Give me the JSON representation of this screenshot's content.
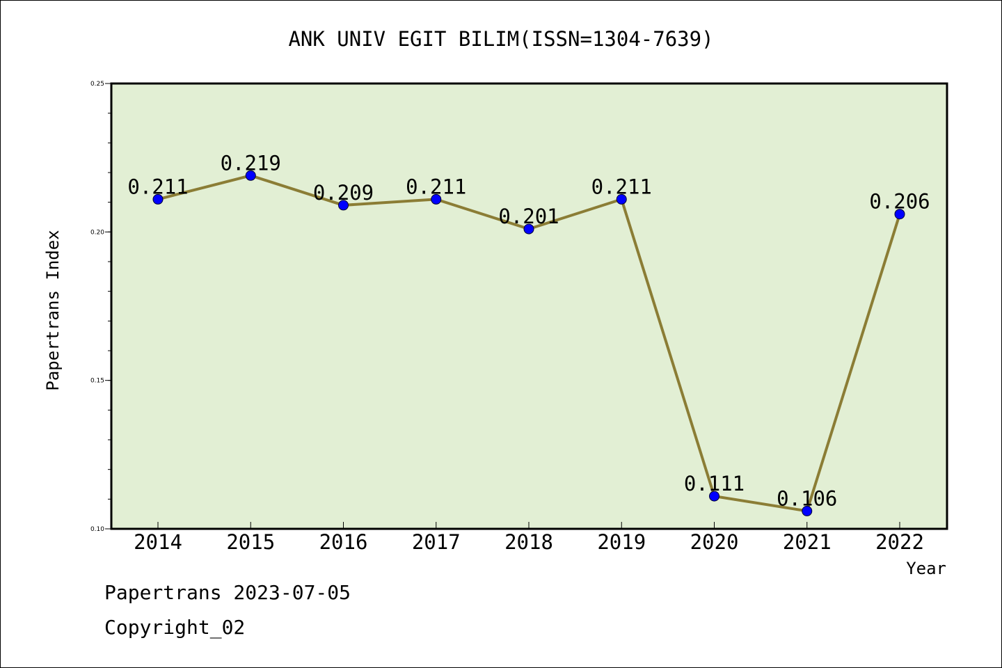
{
  "chart_data": {
    "type": "line",
    "title": "ANK UNIV EGIT BILIM(ISSN=1304-7639)",
    "xlabel": "Year",
    "ylabel": "Papertrans Index",
    "categories": [
      "2014",
      "2015",
      "2016",
      "2017",
      "2018",
      "2019",
      "2020",
      "2021",
      "2022"
    ],
    "series": [
      {
        "values": [
          0.211,
          0.219,
          0.209,
          0.211,
          0.201,
          0.211,
          0.111,
          0.106,
          0.206
        ],
        "labels": [
          "0.211",
          "0.219",
          "0.209",
          "0.211",
          "0.201",
          "0.211",
          "0.111",
          "0.106",
          "0.206"
        ]
      }
    ],
    "ylim": [
      0.1,
      0.25
    ],
    "yticks": [
      "0.10",
      "0.15",
      "0.20",
      "0.25"
    ],
    "grid": false,
    "colors": {
      "plot_background": "#e2efd4",
      "line": "#8b7d35",
      "marker": "#0000ff"
    }
  },
  "footer": {
    "line1": "Papertrans 2023-07-05",
    "line2": "Copyright_02"
  }
}
